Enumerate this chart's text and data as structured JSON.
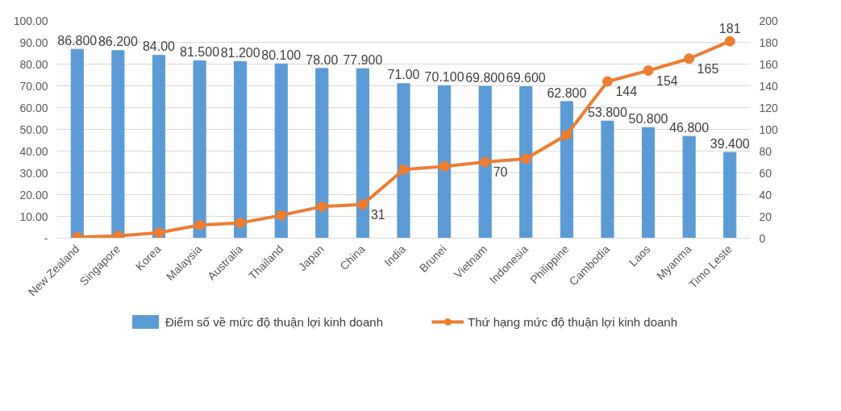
{
  "chart_data": {
    "type": "bar",
    "categories": [
      "New Zealand",
      "Singapore",
      "Korea",
      "Malaysia",
      "Australia",
      "Thailand",
      "Japan",
      "China",
      "India",
      "Brunei",
      "Vietnam",
      "Indonesia",
      "Philippine",
      "Cambodia",
      "Laos",
      "Myanma",
      "Timo Leste"
    ],
    "series": [
      {
        "name": "Điểm số về mức độ thuận lợi kinh doanh",
        "color": "#5b9bd5",
        "values": [
          86.8,
          86.2,
          84.0,
          81.5,
          81.2,
          80.1,
          78.0,
          77.9,
          71.0,
          70.1,
          69.8,
          69.6,
          62.8,
          53.8,
          50.8,
          46.8,
          39.4
        ],
        "value_labels": [
          "86.800",
          "86.200",
          "84.00",
          "81.500",
          "81.200",
          "80.100",
          "78.00",
          "77.900",
          "71.00",
          "70.100",
          "69.800",
          "69.600",
          "62.800",
          "53.800",
          "50.800",
          "46.800",
          "39.400"
        ]
      },
      {
        "name": "Thứ hạng mức độ thuận lợi kinh doanh",
        "type": "line",
        "axis": "y2",
        "color": "#ed7d31",
        "values": [
          1,
          2,
          5,
          12,
          14,
          21,
          29,
          31,
          63,
          66,
          70,
          73,
          95,
          144,
          154,
          165,
          181
        ],
        "value_labels": [
          null,
          null,
          null,
          null,
          null,
          null,
          null,
          "31",
          null,
          null,
          "70",
          null,
          null,
          "144",
          "154",
          "165",
          "181"
        ]
      }
    ],
    "ylim": [
      0,
      100
    ],
    "yticks": [
      {
        "value": 0,
        "label": "-"
      },
      {
        "value": 10,
        "label": "10.00"
      },
      {
        "value": 20,
        "label": "20.00"
      },
      {
        "value": 30,
        "label": "30.00"
      },
      {
        "value": 40,
        "label": "40.00"
      },
      {
        "value": 50,
        "label": "50.00"
      },
      {
        "value": 60,
        "label": "60.00"
      },
      {
        "value": 70,
        "label": "70.00"
      },
      {
        "value": 80,
        "label": "80.00"
      },
      {
        "value": 90,
        "label": "90.00"
      },
      {
        "value": 100,
        "label": "100.00"
      }
    ],
    "y2lim": [
      0,
      200
    ],
    "y2ticks": [
      0,
      20,
      40,
      60,
      80,
      100,
      120,
      140,
      160,
      180,
      200
    ],
    "grid": "y",
    "legend": "bottom",
    "marker": "circle"
  }
}
